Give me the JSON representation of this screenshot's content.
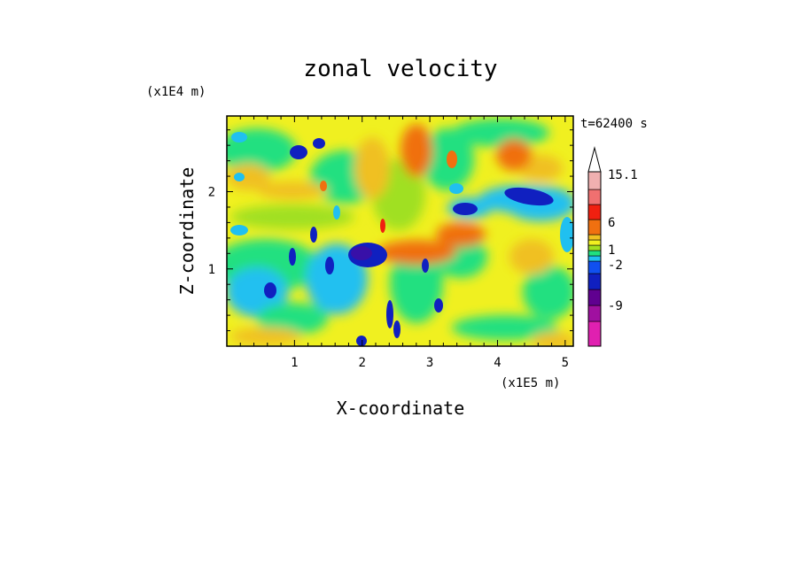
{
  "chart_data": {
    "type": "heatmap",
    "title": "zonal velocity",
    "xlabel": "X-coordinate",
    "ylabel": "Z-coordinate",
    "x_scale_label": "(x1E5 m)",
    "y_scale_label": "(x1E4 m)",
    "time_label": "t=62400 s",
    "xlim": [
      0,
      5.12
    ],
    "ylim": [
      0,
      2.98
    ],
    "x_ticks": [
      1,
      2,
      3,
      4,
      5
    ],
    "x_tick_labels": [
      "1",
      "2",
      "3",
      "4",
      "5"
    ],
    "y_ticks": [
      1,
      2
    ],
    "y_tick_labels": [
      "1",
      "2"
    ],
    "colorbar": {
      "levels_colors": [
        "#e020b0",
        "#a010a0",
        "#600090",
        "#1020c0",
        "#1050f0",
        "#20c0f0",
        "#20e080",
        "#a0e020",
        "#f0f020",
        "#f0c020",
        "#f07010",
        "#f02010",
        "#f07070",
        "#f0b0b0"
      ],
      "tick_labels": [
        "15.1",
        "6",
        "1",
        "-2",
        "-9"
      ],
      "tick_values": [
        15.1,
        6,
        1,
        -2,
        -9
      ],
      "extend_top": true
    },
    "features": [
      {
        "name": "negative-core-left",
        "x": 2.0,
        "z": 1.2,
        "value": -9
      },
      {
        "name": "positive-band-center",
        "x": 2.9,
        "z": 1.15,
        "value": 6
      },
      {
        "name": "negative-band-upper-right",
        "x": 4.2,
        "z": 1.95,
        "value": -9
      },
      {
        "name": "negative-blob-upper-left",
        "x": 1.1,
        "z": 2.55,
        "value": -9
      },
      {
        "name": "positive-blob-right",
        "x": 3.5,
        "z": 1.45,
        "value": 6
      }
    ]
  }
}
